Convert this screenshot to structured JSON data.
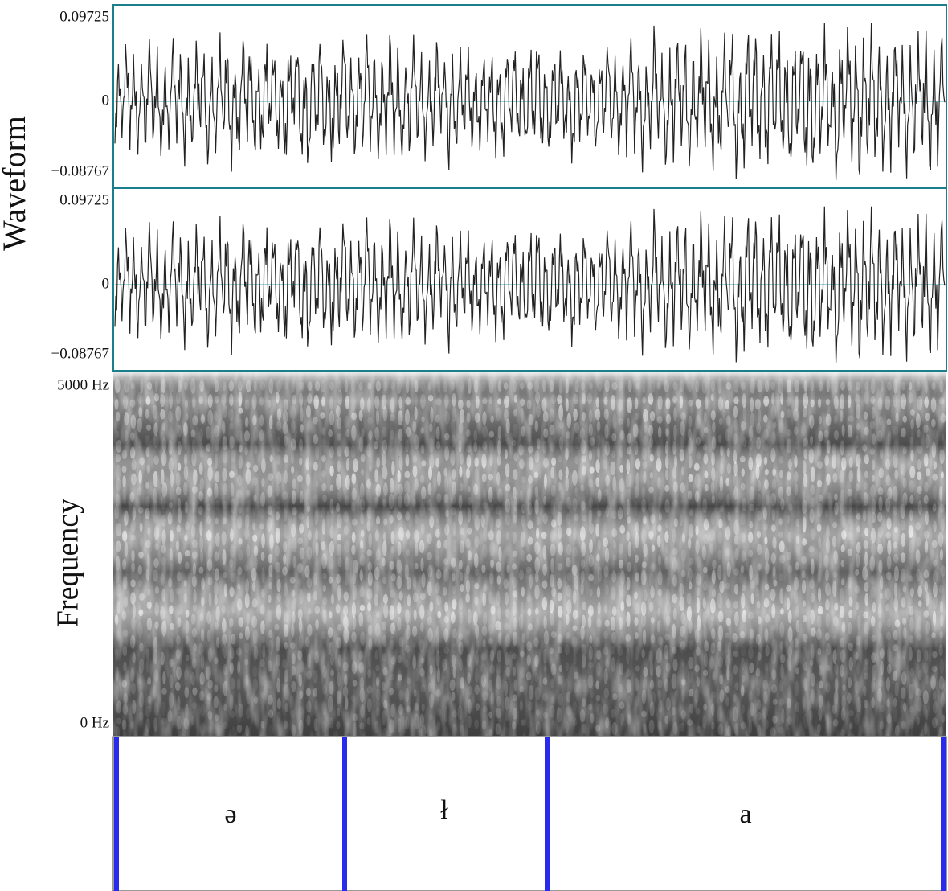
{
  "waveform": {
    "label": "Waveform",
    "channels": [
      {
        "ticks": [
          "0.09725",
          "0",
          "−0.08767"
        ]
      },
      {
        "ticks": [
          "0.09725",
          "0",
          "−0.08767"
        ]
      }
    ]
  },
  "spectrogram": {
    "label": "Frequency",
    "ticks": [
      "5000 Hz",
      "0 Hz"
    ]
  },
  "textgrid": {
    "intervals": [
      "ə",
      "ł",
      "a"
    ]
  }
}
